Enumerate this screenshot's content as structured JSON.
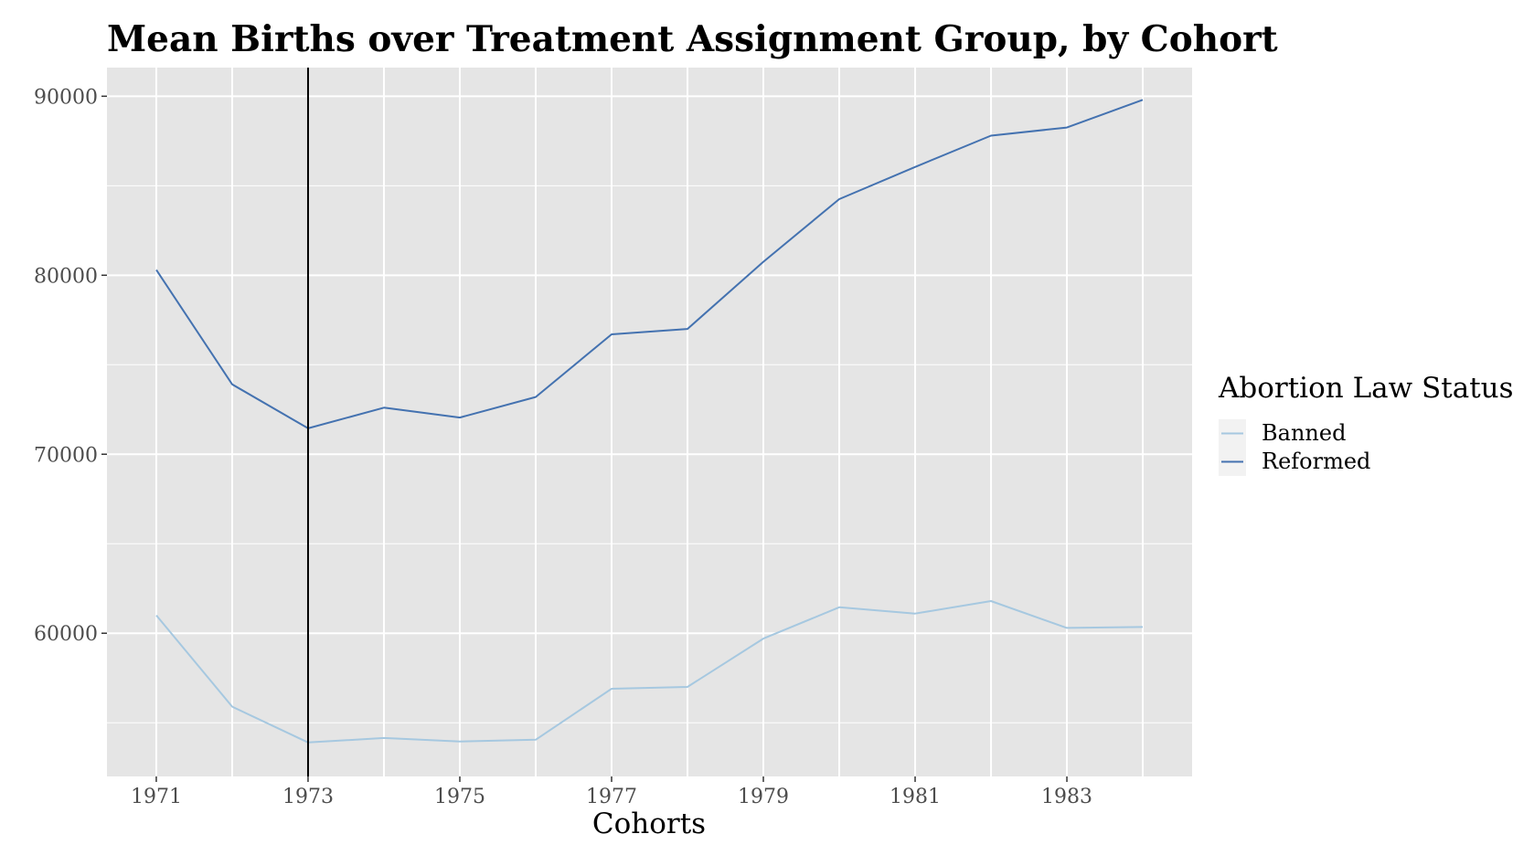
{
  "chart_data": {
    "type": "line",
    "title": "Mean Births over Treatment Assignment Group, by Cohort",
    "xlabel": "Cohorts",
    "ylabel": "",
    "x": [
      1971,
      1972,
      1973,
      1974,
      1975,
      1976,
      1977,
      1978,
      1979,
      1980,
      1981,
      1982,
      1983,
      1984
    ],
    "xlim": [
      1970.35,
      1984.65
    ],
    "ylim": [
      52000,
      91600
    ],
    "x_ticks": [
      1971,
      1973,
      1975,
      1977,
      1979,
      1981,
      1983
    ],
    "x_tick_labels": [
      "1971",
      "1973",
      "1975",
      "1977",
      "1979",
      "1981",
      "1983"
    ],
    "y_ticks": [
      60000,
      70000,
      80000,
      90000
    ],
    "y_tick_labels": [
      "60000",
      "70000",
      "80000",
      "90000"
    ],
    "vline": 1973,
    "grid": true,
    "legend": {
      "title": "Abortion Law Status",
      "position": "right"
    },
    "series": [
      {
        "name": "Banned",
        "color": "#a6c8e0",
        "values": [
          61000,
          55900,
          53900,
          54150,
          53950,
          54050,
          56900,
          57000,
          59700,
          61450,
          61100,
          61800,
          60300,
          60350
        ]
      },
      {
        "name": "Reformed",
        "color": "#4472b0",
        "values": [
          80300,
          73900,
          71450,
          72600,
          72050,
          73200,
          76700,
          77000,
          80750,
          84250,
          86050,
          87800,
          88250,
          89800
        ]
      }
    ],
    "colors": {
      "panel_bg": "#e5e5e5",
      "grid": "#ffffff",
      "vline": "#000000"
    }
  }
}
